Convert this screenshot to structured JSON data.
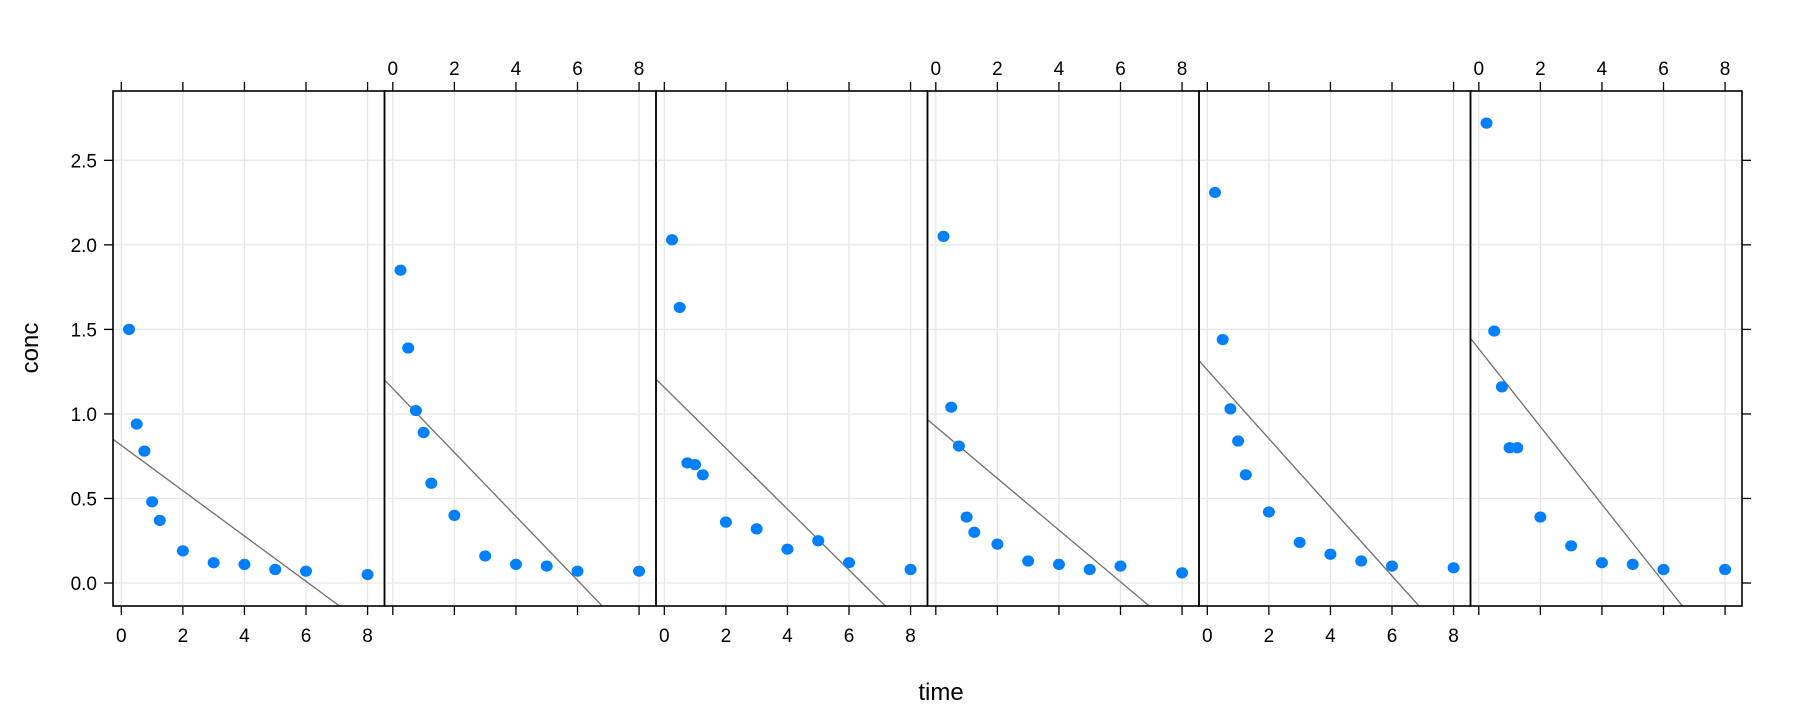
{
  "chart_data": {
    "type": "scatter",
    "layout": "lattice xyplot, 6 panels in one row, no strip labels",
    "title": "",
    "xlabel": "time",
    "ylabel": "conc",
    "xlim": [
      -0.27,
      8.55
    ],
    "ylim": [
      -0.136,
      2.91
    ],
    "x_ticks": [
      0,
      2,
      4,
      6,
      8
    ],
    "y_ticks": [
      0.0,
      0.5,
      1.0,
      1.5,
      2.0,
      2.5
    ],
    "y_tick_labels": [
      "0.0",
      "0.5",
      "1.0",
      "1.5",
      "2.0",
      "2.5"
    ],
    "grid": true,
    "point_color": "#0080ff",
    "line_color": "#6e6e6e",
    "x": [
      0.25,
      0.5,
      0.75,
      1,
      1.25,
      2,
      3,
      4,
      5,
      6,
      8
    ],
    "panels": [
      {
        "name": "panel-1",
        "x_labels_side": "bottom",
        "values": [
          1.5,
          0.94,
          0.78,
          0.48,
          0.37,
          0.19,
          0.12,
          0.11,
          0.08,
          0.07,
          0.05
        ],
        "fit_line": {
          "intercept": 0.814,
          "slope": -0.134
        }
      },
      {
        "name": "panel-2",
        "x_labels_side": "top",
        "values": [
          1.85,
          1.39,
          1.02,
          0.89,
          0.59,
          0.4,
          0.16,
          0.11,
          0.1,
          0.07,
          0.07
        ],
        "fit_line": {
          "intercept": 1.15,
          "slope": -0.189
        }
      },
      {
        "name": "panel-3",
        "x_labels_side": "bottom",
        "x": [
          0.25,
          0.5,
          0.75,
          1,
          1.25,
          2,
          3,
          4,
          5,
          6,
          8
        ],
        "values": [
          2.03,
          1.63,
          0.71,
          0.7,
          0.64,
          0.36,
          0.32,
          0.2,
          0.25,
          0.12,
          0.08
        ],
        "fit_line": {
          "intercept": 1.157,
          "slope": -0.18
        }
      },
      {
        "name": "panel-4",
        "x_labels_side": "top",
        "values": [
          2.05,
          1.04,
          0.81,
          0.39,
          0.3,
          0.23,
          0.13,
          0.11,
          0.08,
          0.1,
          0.06
        ],
        "fit_line": {
          "intercept": 0.925,
          "slope": -0.153
        }
      },
      {
        "name": "panel-5",
        "x_labels_side": "bottom",
        "values": [
          2.31,
          1.44,
          1.03,
          0.84,
          0.64,
          0.42,
          0.24,
          0.17,
          0.13,
          0.1,
          0.09
        ],
        "fit_line": {
          "intercept": 1.26,
          "slope": -0.203
        }
      },
      {
        "name": "panel-6",
        "x_labels_side": "top",
        "values": [
          2.72,
          1.49,
          1.16,
          0.8,
          0.8,
          0.39,
          0.22,
          0.12,
          0.11,
          0.08,
          0.08
        ],
        "fit_line": {
          "intercept": 1.385,
          "slope": -0.23
        }
      }
    ]
  }
}
